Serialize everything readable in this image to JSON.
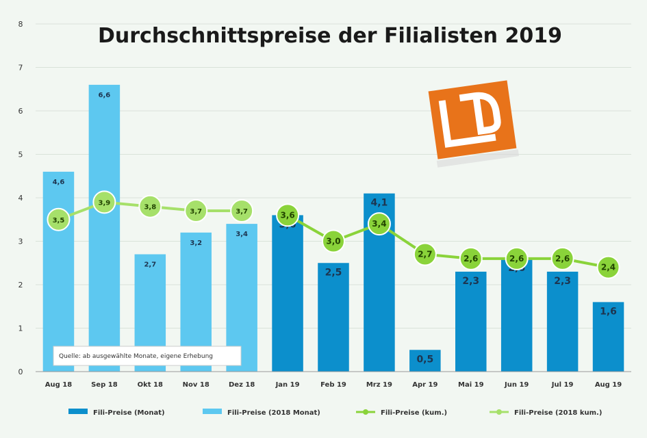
{
  "chart_data": {
    "type": "bar",
    "title": "Durchschnittspreise der Filialisten 2019",
    "categories": [
      "Aug 18",
      "Sep 18",
      "Okt 18",
      "Nov 18",
      "Dez 18",
      "Jan 19",
      "Feb 19",
      "Mrz 19",
      "Apr 19",
      "Mai 19",
      "Jun 19",
      "Jul 19",
      "Aug 19"
    ],
    "ylim": [
      0,
      8
    ],
    "yticks": [
      "0",
      "1",
      "2",
      "3",
      "4",
      "5",
      "6",
      "7",
      "8"
    ],
    "grid": true,
    "legend_position": "bottom",
    "series": [
      {
        "name": "Fili-Preise (Monat)",
        "kind": "bar",
        "color": "#0c8fcc",
        "values": [
          null,
          null,
          null,
          null,
          null,
          3.6,
          2.5,
          4.1,
          0.5,
          2.3,
          2.6,
          2.3,
          1.6
        ],
        "labels": [
          "",
          "",
          "",
          "",
          "",
          "3,6",
          "2,5",
          "4,1",
          "0,5",
          "2,3",
          "2,6",
          "2,3",
          "1,6"
        ]
      },
      {
        "name": "Fili-Preise (2018 Monat)",
        "kind": "bar",
        "color": "#5dc8f0",
        "values": [
          4.6,
          6.6,
          2.7,
          3.2,
          3.4,
          null,
          null,
          null,
          null,
          null,
          null,
          null,
          null
        ],
        "labels": [
          "4,6",
          "6,6",
          "2,7",
          "3,2",
          "3,4",
          "",
          "",
          "",
          "",
          "",
          "",
          "",
          ""
        ]
      },
      {
        "name": "Fili-Preise (kum.)",
        "kind": "line",
        "color": "#8ad33a",
        "values": [
          null,
          null,
          null,
          null,
          null,
          3.6,
          3.0,
          3.4,
          2.7,
          2.6,
          2.6,
          2.6,
          2.4
        ],
        "labels": [
          "",
          "",
          "",
          "",
          "",
          "3,6",
          "3,0",
          "3,4",
          "2,7",
          "2,6",
          "2,6",
          "2,6",
          "2,4"
        ]
      },
      {
        "name": "Fili-Preise (2018 kum.)",
        "kind": "line",
        "color": "#a6e06a",
        "values": [
          3.5,
          3.9,
          3.8,
          3.7,
          3.7,
          null,
          null,
          null,
          null,
          null,
          null,
          null,
          null
        ],
        "labels": [
          "3,5",
          "3,9",
          "3,8",
          "3,7",
          "3,7",
          "",
          "",
          "",
          "",
          "",
          "",
          "",
          ""
        ]
      }
    ],
    "annotation": "Quelle: ab ausgewählte Monate, eigene Erhebung"
  },
  "logo": {
    "name": "ld-logo",
    "color": "#e8731a"
  }
}
